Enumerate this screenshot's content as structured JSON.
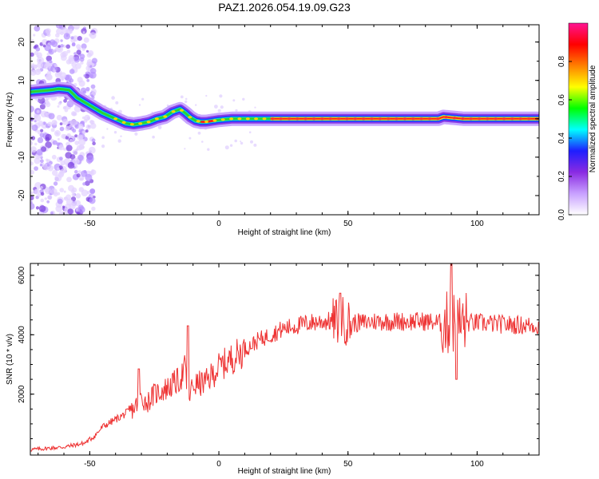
{
  "figure": {
    "title": "PAZ1.2026.054.19.09.G23"
  },
  "chart_data": [
    {
      "type": "heatmap",
      "name": "spectrogram",
      "xlabel": "Height of straight line (km)",
      "ylabel": "Frequency (Hz)",
      "xlim": [
        -73,
        124
      ],
      "ylim": [
        -25,
        24.5
      ],
      "xticks": [
        -50,
        0,
        50,
        100
      ],
      "yticks": [
        -20,
        -10,
        0,
        10,
        20
      ],
      "ridge": {
        "description": "dominant frequency vs height",
        "x": [
          -73,
          -65,
          -62,
          -58,
          -55,
          -50,
          -45,
          -40,
          -36,
          -33,
          -30,
          -27,
          -24,
          -21,
          -18,
          -15,
          -13,
          -11,
          -9,
          -7,
          -5,
          0,
          5,
          10,
          20,
          50,
          85,
          87,
          90,
          95,
          124
        ],
        "y": [
          7,
          7.5,
          7.8,
          7.5,
          5.5,
          3.5,
          1.5,
          0,
          -1.2,
          -1.5,
          -1.2,
          -0.8,
          0,
          0.5,
          1.8,
          2.5,
          1.5,
          0.3,
          -0.5,
          -0.8,
          -0.8,
          -0.3,
          0,
          0,
          0,
          0,
          0,
          0.5,
          0.3,
          0,
          0
        ]
      },
      "colorbar": {
        "label": "Normalized spectral amplitude",
        "range": [
          0,
          1
        ],
        "ticks": [
          "0.0",
          "0.2",
          "0.4",
          "0.6",
          "0.8"
        ],
        "tick_values": [
          0,
          0.2,
          0.4,
          0.6,
          0.8
        ],
        "colors": [
          "#ffffff",
          "#c8a0ff",
          "#8a2be2",
          "#1e1eff",
          "#00ffff",
          "#00ff00",
          "#ffff00",
          "#ff8000",
          "#ff0000",
          "#ff1493"
        ]
      }
    },
    {
      "type": "line",
      "name": "snr",
      "xlabel": "Height of straight line (km)",
      "ylabel": "SNR (10 * v/v)",
      "xlim": [
        -73,
        124
      ],
      "ylim": [
        -50,
        6400
      ],
      "xticks": [
        -50,
        0,
        50,
        100
      ],
      "yticks": [
        2000,
        4000,
        6000
      ],
      "series": [
        {
          "name": "SNR",
          "color": "#ee3333",
          "x": [
            -73,
            -60,
            -52,
            -48,
            -45,
            -42,
            -38,
            -33,
            -30,
            -28,
            -25,
            -20,
            -15,
            -13,
            -12,
            -10,
            -5,
            0,
            5,
            10,
            15,
            20,
            25,
            30,
            35,
            40,
            45,
            48,
            50,
            55,
            60,
            70,
            80,
            85,
            88,
            90,
            92,
            95,
            100,
            110,
            124
          ],
          "y": [
            130,
            220,
            350,
            600,
            900,
            1050,
            1250,
            1500,
            1900,
            1700,
            2000,
            2200,
            2500,
            2900,
            1800,
            2300,
            2400,
            2900,
            3200,
            3500,
            3800,
            4000,
            4200,
            4300,
            4400,
            4450,
            4450,
            4500,
            4400,
            4400,
            4450,
            4450,
            4450,
            4400,
            4350,
            4500,
            4300,
            4400,
            4400,
            4350,
            4300
          ]
        }
      ],
      "annotations": [
        {
          "x": -31,
          "y": 2850,
          "note": "spike"
        },
        {
          "x": -12,
          "y": 4300,
          "note": "spike"
        },
        {
          "x": 47,
          "y": 5400,
          "note": "spike"
        },
        {
          "x": 90,
          "y": 6400,
          "note": "peak"
        },
        {
          "x": 92,
          "y": 2500,
          "note": "dip"
        }
      ]
    }
  ]
}
